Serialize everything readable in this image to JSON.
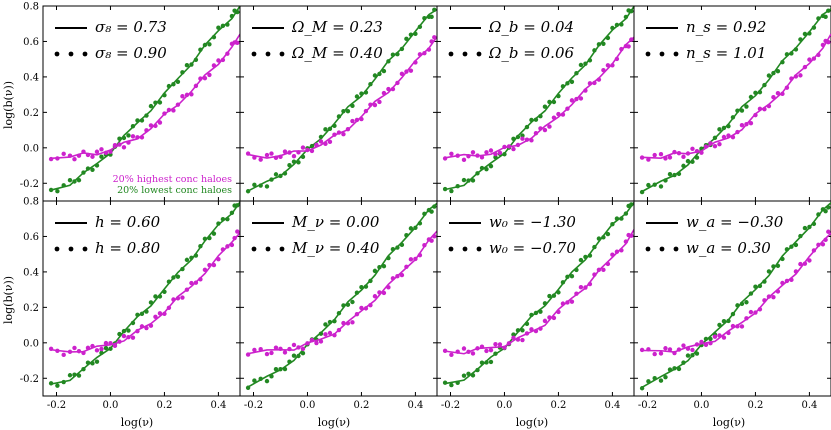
{
  "colors": {
    "high_conc": "#cc22cc",
    "low_conc": "#228822",
    "axes": "#000000"
  },
  "figure": {
    "x_axis_label": "log(ν)",
    "y_axis_label": "log(b(ν))",
    "annotation_high": "20% highest conc haloes",
    "annotation_low": "20% lowest conc haloes"
  },
  "chart_data": {
    "type": "line",
    "xlim": [
      -0.25,
      0.48
    ],
    "ylim": [
      -0.3,
      0.8
    ],
    "x_ticks": [
      "-0.2",
      "0.0",
      "0.2",
      "0.4"
    ],
    "y_ticks": [
      "-0.2",
      "0.0",
      "0.2",
      "0.4",
      "0.6",
      "0.8"
    ],
    "grid": false,
    "series_styles": {
      "solid": "line",
      "dotted": "dots"
    },
    "shared_curves": {
      "low_conc": {
        "x": [
          -0.22,
          -0.15,
          -0.1,
          -0.05,
          0.0,
          0.05,
          0.1,
          0.15,
          0.2,
          0.25,
          0.3,
          0.35,
          0.4,
          0.45,
          0.48
        ],
        "y": [
          -0.24,
          -0.2,
          -0.15,
          -0.09,
          -0.02,
          0.06,
          0.14,
          0.22,
          0.3,
          0.39,
          0.48,
          0.57,
          0.66,
          0.74,
          0.79
        ]
      },
      "high_conc": {
        "x": [
          -0.22,
          -0.15,
          -0.1,
          -0.05,
          0.0,
          0.05,
          0.1,
          0.15,
          0.2,
          0.25,
          0.3,
          0.35,
          0.4,
          0.45,
          0.48
        ],
        "y": [
          -0.05,
          -0.05,
          -0.04,
          -0.03,
          -0.01,
          0.02,
          0.06,
          0.11,
          0.18,
          0.25,
          0.32,
          0.4,
          0.48,
          0.57,
          0.63
        ]
      }
    },
    "panels": [
      {
        "row": 0,
        "col": 0,
        "legend_solid": "σ₈ = 0.73",
        "legend_dots": "σ₈ = 0.90"
      },
      {
        "row": 0,
        "col": 1,
        "legend_solid": "Ω_M = 0.23",
        "legend_dots": "Ω_M = 0.40"
      },
      {
        "row": 0,
        "col": 2,
        "legend_solid": "Ω_b = 0.04",
        "legend_dots": "Ω_b = 0.06"
      },
      {
        "row": 0,
        "col": 3,
        "legend_solid": "n_s = 0.92",
        "legend_dots": "n_s = 1.01"
      },
      {
        "row": 1,
        "col": 0,
        "legend_solid": "h = 0.60",
        "legend_dots": "h = 0.80"
      },
      {
        "row": 1,
        "col": 1,
        "legend_solid": "M_ν = 0.00",
        "legend_dots": "M_ν = 0.40"
      },
      {
        "row": 1,
        "col": 2,
        "legend_solid": "w₀ = −1.30",
        "legend_dots": "w₀ = −0.70"
      },
      {
        "row": 1,
        "col": 3,
        "legend_solid": "w_a = −0.30",
        "legend_dots": "w_a = 0.30"
      }
    ]
  }
}
